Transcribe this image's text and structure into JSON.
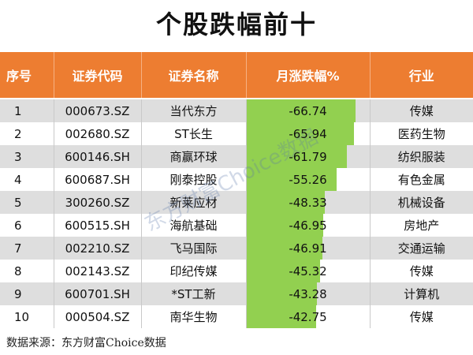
{
  "title": "个股跌幅前十",
  "header": {
    "rank": "序号",
    "code": "证券代码",
    "name": "证券名称",
    "change": "月涨跌幅%",
    "industry": "行业"
  },
  "rows": [
    {
      "rank": "1",
      "code": "000673.SZ",
      "name": "当代东方",
      "change": "-66.74",
      "industry": "传媒"
    },
    {
      "rank": "2",
      "code": "002680.SZ",
      "name": "ST长生",
      "change": "-65.94",
      "industry": "医药生物"
    },
    {
      "rank": "3",
      "code": "600146.SH",
      "name": "商赢环球",
      "change": "-61.79",
      "industry": "纺织服装"
    },
    {
      "rank": "4",
      "code": "600687.SH",
      "name": "刚泰控股",
      "change": "-55.26",
      "industry": "有色金属"
    },
    {
      "rank": "5",
      "code": "300260.SZ",
      "name": "新莱应材",
      "change": "-48.33",
      "industry": "机械设备"
    },
    {
      "rank": "6",
      "code": "600515.SH",
      "name": "海航基础",
      "change": "-46.95",
      "industry": "房地产"
    },
    {
      "rank": "7",
      "code": "002210.SZ",
      "name": "飞马国际",
      "change": "-46.91",
      "industry": "交通运输"
    },
    {
      "rank": "8",
      "code": "002143.SZ",
      "name": "印纪传媒",
      "change": "-45.32",
      "industry": "传媒"
    },
    {
      "rank": "9",
      "code": "600701.SH",
      "name": "*ST工新",
      "change": "-43.28",
      "industry": "计算机"
    },
    {
      "rank": "10",
      "code": "000504.SZ",
      "name": "南华生物",
      "change": "-42.75",
      "industry": "传媒"
    }
  ],
  "source": "数据来源：东方财富Choice数据",
  "watermark": "东方财富Choice数据",
  "colors": {
    "header": "#ed7d31",
    "bar": "#92d050",
    "row_alt": "#dedede"
  },
  "chart_data": {
    "type": "table",
    "title": "个股跌幅前十",
    "columns": [
      "序号",
      "证券代码",
      "证券名称",
      "月涨跌幅%",
      "行业"
    ],
    "categories": [
      "当代东方",
      "ST长生",
      "商赢环球",
      "刚泰控股",
      "新莱应材",
      "海航基础",
      "飞马国际",
      "印纪传媒",
      "*ST工新",
      "南华生物"
    ],
    "values": [
      -66.74,
      -65.94,
      -61.79,
      -55.26,
      -48.33,
      -46.95,
      -46.91,
      -45.32,
      -43.28,
      -42.75
    ],
    "bar_scale_max_abs": 66.74
  }
}
